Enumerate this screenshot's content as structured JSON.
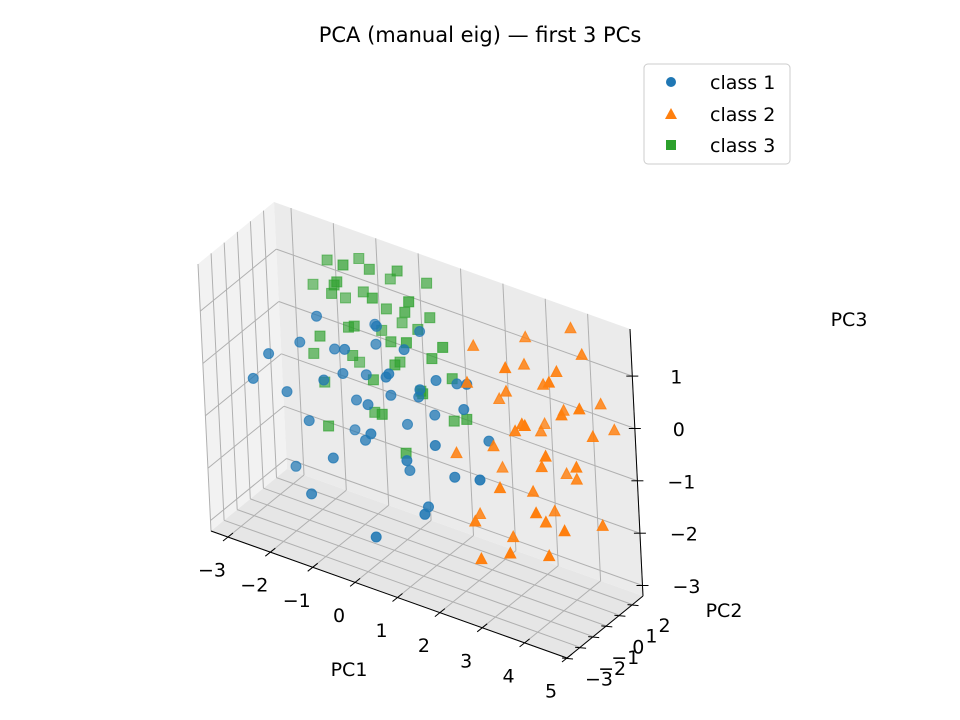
{
  "chart_data": {
    "type": "scatter",
    "title": "PCA (manual eig) — first 3 PCs",
    "xlabel": "PC1",
    "ylabel": "PC2",
    "zlabel": "PC3",
    "xlim": [
      -3.4,
      5.0
    ],
    "ylim": [
      -3.0,
      2.8
    ],
    "zlim": [
      -3.2,
      1.9
    ],
    "xticks": [
      "−3",
      "−2",
      "−1",
      "0",
      "1",
      "2",
      "3",
      "4",
      "5"
    ],
    "yticks": [
      "−3",
      "−2",
      "−1",
      "0",
      "1",
      "2"
    ],
    "zticks": [
      "−3",
      "−2",
      "−1",
      "0",
      "1"
    ],
    "grid": true,
    "legend_position": "top-right",
    "series": [
      {
        "name": "class 1",
        "marker": "circle",
        "color": "#1f77b4",
        "points": [
          [
            -2.6,
            -1.8,
            -0.3
          ],
          [
            -2.3,
            -1.5,
            0.2
          ],
          [
            -2.0,
            -1.2,
            -0.5
          ],
          [
            -1.8,
            -0.7,
            0.4
          ],
          [
            -1.6,
            -0.9,
            -1.0
          ],
          [
            -1.5,
            -0.3,
            0.9
          ],
          [
            -1.3,
            -0.6,
            -0.2
          ],
          [
            -1.2,
            0.0,
            0.3
          ],
          [
            -1.0,
            -1.1,
            -1.5
          ],
          [
            -0.9,
            -0.4,
            0.0
          ],
          [
            -0.8,
            0.2,
            -0.6
          ],
          [
            -0.7,
            -0.8,
            0.6
          ],
          [
            -0.6,
            0.4,
            -0.1
          ],
          [
            -0.5,
            -0.2,
            -1.2
          ],
          [
            -0.4,
            0.6,
            0.5
          ],
          [
            -0.3,
            -0.5,
            -0.4
          ],
          [
            -0.2,
            0.1,
            1.0
          ],
          [
            -0.1,
            -1.0,
            -0.8
          ],
          [
            0.0,
            0.3,
            -0.3
          ],
          [
            0.1,
            -0.3,
            0.2
          ],
          [
            0.2,
            0.8,
            -0.9
          ],
          [
            0.3,
            -0.7,
            0.4
          ],
          [
            0.4,
            0.2,
            -1.6
          ],
          [
            0.5,
            -0.1,
            0.8
          ],
          [
            0.6,
            0.5,
            -0.2
          ],
          [
            0.7,
            -0.9,
            -1.1
          ],
          [
            0.8,
            0.0,
            0.1
          ],
          [
            0.9,
            0.7,
            -0.5
          ],
          [
            1.0,
            -0.4,
            -2.0
          ],
          [
            1.1,
            0.3,
            0.3
          ],
          [
            1.3,
            -0.6,
            -0.7
          ],
          [
            1.4,
            0.9,
            0.2
          ],
          [
            1.6,
            -0.2,
            -1.3
          ],
          [
            1.7,
            0.4,
            -0.1
          ],
          [
            -2.1,
            -0.5,
            -2.1
          ],
          [
            -1.4,
            -1.6,
            -2.2
          ],
          [
            0.2,
            -1.9,
            -2.5
          ],
          [
            1.2,
            -1.3,
            -1.9
          ],
          [
            -0.6,
            1.2,
            0.7
          ],
          [
            1.9,
            0.1,
            0.5
          ],
          [
            -1.1,
            0.9,
            -1.4
          ],
          [
            0.5,
            1.1,
            0.9
          ],
          [
            2.2,
            0.6,
            -0.6
          ],
          [
            2.4,
            -0.8,
            -1.0
          ]
        ]
      },
      {
        "name": "class 2",
        "marker": "triangle",
        "color": "#ff7f0e",
        "points": [
          [
            2.0,
            0.4,
            1.2
          ],
          [
            2.2,
            -0.8,
            0.8
          ],
          [
            2.4,
            0.9,
            0.2
          ],
          [
            2.6,
            -0.3,
            -0.4
          ],
          [
            2.8,
            0.2,
            0.6
          ],
          [
            3.0,
            -1.2,
            -0.9
          ],
          [
            3.1,
            0.7,
            1.1
          ],
          [
            3.2,
            -0.5,
            0.1
          ],
          [
            3.3,
            1.1,
            -0.2
          ],
          [
            3.4,
            0.0,
            -1.1
          ],
          [
            3.5,
            -0.9,
            0.4
          ],
          [
            3.6,
            0.5,
            0.9
          ],
          [
            3.7,
            -0.2,
            -0.5
          ],
          [
            3.8,
            1.3,
            0.3
          ],
          [
            3.9,
            -0.7,
            -1.4
          ],
          [
            4.0,
            0.3,
            1.3
          ],
          [
            4.1,
            -1.1,
            0.0
          ],
          [
            4.2,
            0.8,
            -0.8
          ],
          [
            4.3,
            -0.4,
            0.7
          ],
          [
            4.4,
            1.0,
            1.6
          ],
          [
            4.5,
            -0.1,
            -0.3
          ],
          [
            4.6,
            -1.5,
            -1.2
          ],
          [
            4.7,
            0.6,
            0.2
          ],
          [
            4.8,
            -0.6,
            1.0
          ],
          [
            2.5,
            -1.6,
            -1.6
          ],
          [
            2.9,
            1.5,
            1.4
          ],
          [
            3.3,
            -1.3,
            1.5
          ],
          [
            3.7,
            1.6,
            -1.0
          ],
          [
            4.1,
            -2.0,
            -0.9
          ],
          [
            4.5,
            1.9,
            0.5
          ],
          [
            2.7,
            -1.9,
            -2.2
          ],
          [
            3.1,
            2.0,
            -0.3
          ],
          [
            3.5,
            -2.2,
            -1.8
          ],
          [
            3.9,
            1.8,
            1.8
          ],
          [
            4.3,
            -1.8,
            -1.7
          ],
          [
            4.7,
            2.2,
            0.0
          ],
          [
            2.3,
            1.2,
            -1.2
          ],
          [
            3.0,
            -0.4,
            -2.0
          ],
          [
            3.6,
            0.9,
            -1.6
          ],
          [
            4.2,
            -0.9,
            1.4
          ],
          [
            4.9,
            0.4,
            -1.4
          ],
          [
            1.8,
            -0.6,
            -0.7
          ],
          [
            2.1,
            0.0,
            -1.9
          ],
          [
            3.8,
            -1.6,
            0.6
          ]
        ]
      },
      {
        "name": "class 3",
        "marker": "square",
        "color": "#2ca02c",
        "points": [
          [
            -1.8,
            1.6,
            1.5
          ],
          [
            -1.6,
            1.2,
            1.0
          ],
          [
            -1.5,
            1.9,
            0.8
          ],
          [
            -1.4,
            0.8,
            1.3
          ],
          [
            -1.3,
            1.4,
            0.4
          ],
          [
            -1.2,
            2.1,
            1.6
          ],
          [
            -1.1,
            1.0,
            0.0
          ],
          [
            -1.0,
            1.7,
            1.1
          ],
          [
            -0.9,
            0.6,
            0.7
          ],
          [
            -0.8,
            2.3,
            0.3
          ],
          [
            -0.7,
            1.3,
            1.7
          ],
          [
            -0.6,
            0.9,
            -0.3
          ],
          [
            -0.5,
            1.8,
            0.9
          ],
          [
            -0.4,
            0.5,
            1.4
          ],
          [
            -0.3,
            2.0,
            -0.1
          ],
          [
            -0.2,
            1.1,
            0.5
          ],
          [
            -0.1,
            1.5,
            1.8
          ],
          [
            0.0,
            0.7,
            0.2
          ],
          [
            0.1,
            2.2,
            0.6
          ],
          [
            0.2,
            1.0,
            1.2
          ],
          [
            0.3,
            1.6,
            -0.4
          ],
          [
            0.4,
            0.4,
            0.8
          ],
          [
            0.5,
            1.9,
            1.0
          ],
          [
            0.6,
            0.8,
            -0.2
          ],
          [
            -2.0,
            0.9,
            -0.2
          ],
          [
            -1.7,
            0.5,
            0.3
          ],
          [
            -1.9,
            1.3,
            -0.8
          ],
          [
            -1.4,
            2.4,
            -0.5
          ],
          [
            -1.0,
            0.3,
            1.9
          ],
          [
            -0.6,
            2.5,
            1.3
          ],
          [
            -0.2,
            0.2,
            -0.7
          ],
          [
            0.3,
            2.4,
            1.5
          ],
          [
            0.7,
            1.3,
            0.4
          ],
          [
            1.0,
            1.8,
            0.0
          ],
          [
            1.2,
            0.6,
            0.9
          ],
          [
            1.4,
            1.5,
            -0.6
          ],
          [
            -1.5,
            0.2,
            -1.3
          ],
          [
            -0.8,
            1.5,
            -1.1
          ],
          [
            0.1,
            0.9,
            -1.5
          ],
          [
            0.9,
            2.1,
            -0.9
          ],
          [
            -2.2,
            1.7,
            0.9
          ],
          [
            -1.2,
            0.4,
            1.5
          ],
          [
            -0.4,
            2.6,
            0.5
          ],
          [
            0.6,
            0.1,
            1.7
          ]
        ]
      }
    ]
  }
}
